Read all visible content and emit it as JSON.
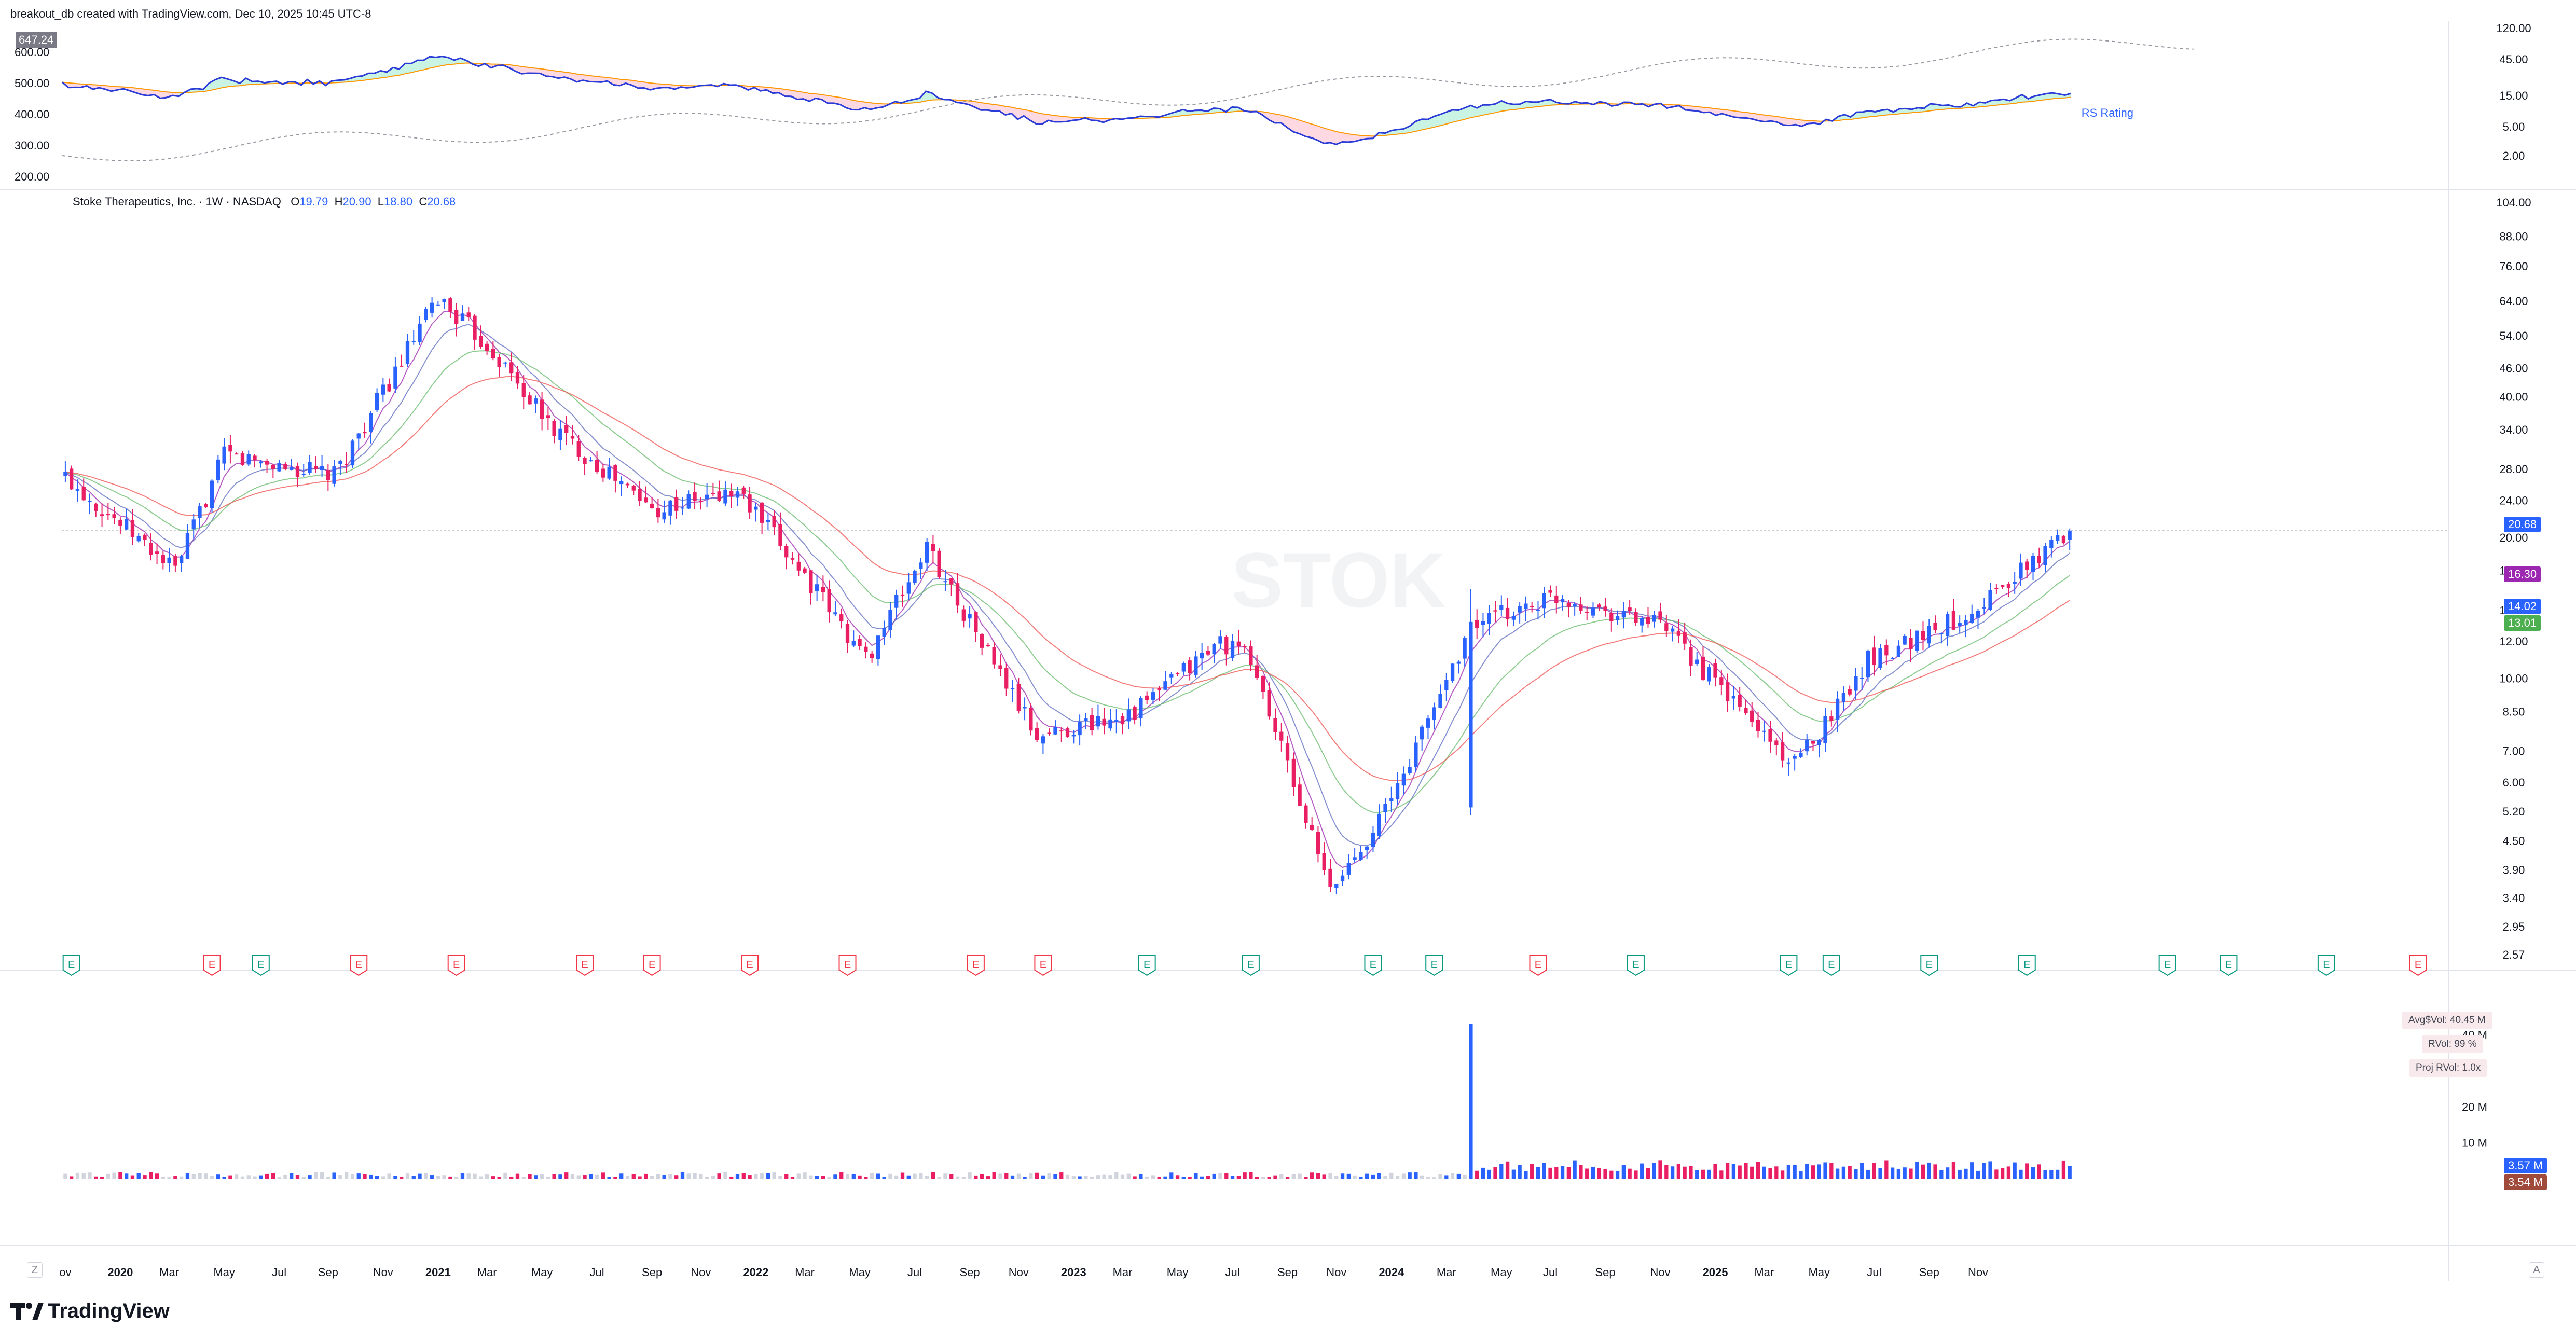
{
  "header": {
    "credit": "breakout_db created with TradingView.com, Dec 10, 2025 10:45 UTC-8"
  },
  "legend": {
    "name": "Stoke Therapeutics, Inc. · 1W · NASDAQ",
    "o_label": "O",
    "o": "19.79",
    "h_label": "H",
    "h": "20.90",
    "l_label": "L",
    "l": "18.80",
    "c_label": "C",
    "c": "20.68"
  },
  "top_panel": {
    "left_axis": [
      "600.00",
      "500.00",
      "400.00",
      "300.00",
      "200.00"
    ],
    "left_badge": "647.24",
    "right_axis": [
      "120.00",
      "45.00",
      "15.00",
      "5.00",
      "2.00"
    ],
    "rs_label": "RS Rating"
  },
  "price_axis": [
    "104.00",
    "88.00",
    "76.00",
    "64.00",
    "54.00",
    "46.00",
    "40.00",
    "34.00",
    "28.00",
    "24.00",
    "20.00",
    "17.00",
    "14.00",
    "12.00",
    "10.00",
    "8.50",
    "7.00",
    "6.00",
    "5.20",
    "4.50",
    "3.90",
    "3.40",
    "2.95",
    "2.57"
  ],
  "price_badges": [
    {
      "text": "20.68",
      "color": "#2962ff"
    },
    {
      "text": "16.30",
      "color": "#9c27b0"
    },
    {
      "text": "14.02",
      "color": "#2962ff"
    },
    {
      "text": "13.01",
      "color": "#4caf50"
    }
  ],
  "watermark": "STOK",
  "earnings_marker": "E",
  "earnings": [
    {
      "i": 1,
      "beat": true
    },
    {
      "i": 24,
      "beat": false
    },
    {
      "i": 32,
      "beat": true
    },
    {
      "i": 48,
      "beat": false
    },
    {
      "i": 64,
      "beat": false
    },
    {
      "i": 85,
      "beat": false
    },
    {
      "i": 96,
      "beat": false
    },
    {
      "i": 112,
      "beat": false
    },
    {
      "i": 128,
      "beat": false
    },
    {
      "i": 149,
      "beat": false
    },
    {
      "i": 160,
      "beat": false
    },
    {
      "i": 177,
      "beat": true
    },
    {
      "i": 194,
      "beat": true
    },
    {
      "i": 214,
      "beat": true
    },
    {
      "i": 224,
      "beat": true
    },
    {
      "i": 241,
      "beat": false
    },
    {
      "i": 257,
      "beat": true
    },
    {
      "i": 282,
      "beat": true
    },
    {
      "i": 289,
      "beat": true
    },
    {
      "i": 305,
      "beat": true
    },
    {
      "i": 321,
      "beat": true
    },
    {
      "i": 344,
      "beat": true
    },
    {
      "i": 354,
      "beat": true
    },
    {
      "i": 370,
      "beat": true
    },
    {
      "i": 385,
      "beat": false
    }
  ],
  "volume_panel": {
    "axis": [
      "40 M",
      "30 M",
      "20 M",
      "10 M"
    ],
    "avg_dollar_vol": "Avg$Vol: 40.45 M",
    "rvol": "RVol: 99 %",
    "proj_rvol": "Proj RVol: 1.0x",
    "badges": [
      {
        "text": "3.57 M",
        "color": "#2962ff"
      },
      {
        "text": "3.54 M",
        "color": "#a04a3c"
      }
    ]
  },
  "time_axis": [
    "ov",
    "2020",
    "Mar",
    "May",
    "Jul",
    "Sep",
    "Nov",
    "2021",
    "Mar",
    "May",
    "Jul",
    "Sep",
    "Nov",
    "2022",
    "Mar",
    "May",
    "Jul",
    "Sep",
    "Nov",
    "2023",
    "Mar",
    "May",
    "Jul",
    "Sep",
    "Nov",
    "2024",
    "Mar",
    "May",
    "Jul",
    "Sep",
    "Nov",
    "2025",
    "Mar",
    "May",
    "Jul",
    "Sep",
    "Nov"
  ],
  "time_axis_bold": [
    "2020",
    "2021",
    "2022",
    "2023",
    "2024",
    "2025"
  ],
  "footer": {
    "logo_text": "TradingView",
    "zoom_z": "Z",
    "zoom_a": "A"
  },
  "colors": {
    "up": "#2962ff",
    "down": "#e91e63",
    "ma_purple": "#9c27b0",
    "ma_blue": "#5c6bc0",
    "ma_green": "#66bb6a",
    "ma_red": "#ef5350"
  },
  "chart_data": {
    "type": "candlestick",
    "title": "Stoke Therapeutics, Inc. · 1W · NASDAQ",
    "scale": "log",
    "ylim": [
      2.57,
      104
    ],
    "x_range": [
      "2019-11",
      "2025-12"
    ],
    "key_points": [
      {
        "date": "2019-11",
        "close": 27
      },
      {
        "date": "2020-03",
        "close": 17
      },
      {
        "date": "2020-05",
        "close": 30
      },
      {
        "date": "2020-09",
        "close": 27
      },
      {
        "date": "2021-01",
        "close": 65
      },
      {
        "date": "2021-03",
        "close": 50
      },
      {
        "date": "2021-05",
        "close": 35
      },
      {
        "date": "2021-09",
        "close": 23
      },
      {
        "date": "2021-12",
        "close": 25
      },
      {
        "date": "2022-02",
        "close": 18
      },
      {
        "date": "2022-05",
        "close": 11
      },
      {
        "date": "2022-07",
        "close": 19
      },
      {
        "date": "2022-11",
        "close": 7.5
      },
      {
        "date": "2023-03",
        "close": 8.5
      },
      {
        "date": "2023-06",
        "close": 12
      },
      {
        "date": "2023-07",
        "close": 11
      },
      {
        "date": "2023-10",
        "close": 3.5
      },
      {
        "date": "2023-12",
        "close": 5.5
      },
      {
        "date": "2024-03",
        "close": 13
      },
      {
        "date": "2024-06",
        "close": 15
      },
      {
        "date": "2024-10",
        "close": 13
      },
      {
        "date": "2025-03",
        "close": 6.5
      },
      {
        "date": "2025-06",
        "close": 11
      },
      {
        "date": "2025-09",
        "close": 16
      },
      {
        "date": "2025-09",
        "close": 20.68
      }
    ],
    "last_bar": {
      "open": 19.79,
      "high": 20.9,
      "low": 18.8,
      "close": 20.68
    },
    "moving_averages_last": [
      16.3,
      14.02,
      13.01
    ],
    "volume_spike": {
      "date": "2024-03",
      "value_m": 43
    },
    "last_volume_m": 3.57
  }
}
